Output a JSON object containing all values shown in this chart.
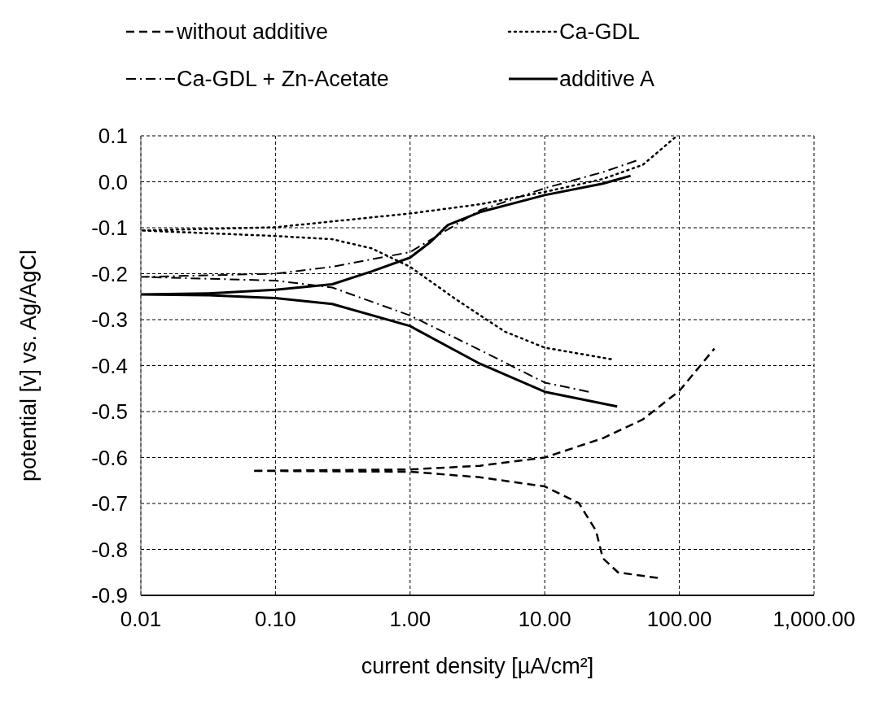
{
  "chart_data": {
    "type": "line",
    "xlabel": "current density [µA/cm²]",
    "ylabel": "potential [v] vs. Ag/AgCl",
    "log": "x",
    "grid": true,
    "legend": "top",
    "marker": "none",
    "xlim": [
      0.01,
      1000
    ],
    "xticks": [
      {
        "value": 0.01,
        "label": "0.01"
      },
      {
        "value": 0.1,
        "label": "0.10"
      },
      {
        "value": 1,
        "label": "1.00"
      },
      {
        "value": 10,
        "label": "10.00"
      },
      {
        "value": 100,
        "label": "100.00"
      },
      {
        "value": 1000,
        "label": "1,000.00"
      }
    ],
    "ylim": [
      -0.9,
      0.1
    ],
    "yticks": [
      0.1,
      {
        "value": 0,
        "label": "0.0"
      },
      -0.1,
      -0.2,
      -0.3,
      -0.4,
      -0.5,
      -0.6,
      -0.7,
      -0.8,
      -0.9
    ],
    "series": [
      {
        "name": "without additive",
        "color": "#000000",
        "line_style": "dashed",
        "x": [
          69,
          35,
          27,
          24,
          17.9,
          10,
          3.3,
          1,
          0.0667,
          1,
          3.3,
          10,
          27,
          53.6,
          100,
          182
        ],
        "values": [
          -0.862,
          -0.85,
          -0.819,
          -0.759,
          -0.699,
          -0.663,
          -0.643,
          -0.631,
          -0.629,
          -0.626,
          -0.618,
          -0.6,
          -0.558,
          -0.517,
          -0.455,
          -0.363
        ]
      },
      {
        "name": "Ca-GDL",
        "color": "#000000",
        "line_style": "dotted",
        "x": [
          31,
          10,
          5.05,
          2.17,
          1,
          0.52,
          0.264,
          0.1,
          0.032,
          0.01,
          0.1,
          1,
          3.3,
          10,
          27,
          53.6,
          95
        ],
        "values": [
          -0.386,
          -0.361,
          -0.326,
          -0.255,
          -0.185,
          -0.145,
          -0.125,
          -0.118,
          -0.112,
          -0.106,
          -0.099,
          -0.069,
          -0.049,
          -0.022,
          0.006,
          0.037,
          0.099
        ]
      },
      {
        "name": "Ca-GDL + Zn-Acetate",
        "color": "#000000",
        "line_style": "dashdot",
        "x": [
          21.2,
          10,
          3.3,
          1,
          0.264,
          0.1,
          0.01,
          0.1,
          0.264,
          1,
          2.17,
          3.3,
          10,
          27,
          49
        ],
        "values": [
          -0.457,
          -0.437,
          -0.366,
          -0.291,
          -0.23,
          -0.215,
          -0.207,
          -0.2,
          -0.185,
          -0.153,
          -0.094,
          -0.062,
          -0.014,
          0.021,
          0.047
        ]
      },
      {
        "name": "additive A",
        "color": "#000000",
        "line_style": "solid",
        "x": [
          34.5,
          10,
          3.3,
          1,
          0.264,
          0.1,
          0.032,
          0.01,
          0.032,
          0.1,
          0.264,
          0.52,
          1,
          1.43,
          1.91,
          3.3,
          10,
          27,
          43.4
        ],
        "values": [
          -0.489,
          -0.457,
          -0.396,
          -0.314,
          -0.266,
          -0.253,
          -0.247,
          -0.245,
          -0.243,
          -0.235,
          -0.223,
          -0.195,
          -0.165,
          -0.13,
          -0.094,
          -0.066,
          -0.029,
          -0.004,
          0.013
        ]
      }
    ]
  }
}
